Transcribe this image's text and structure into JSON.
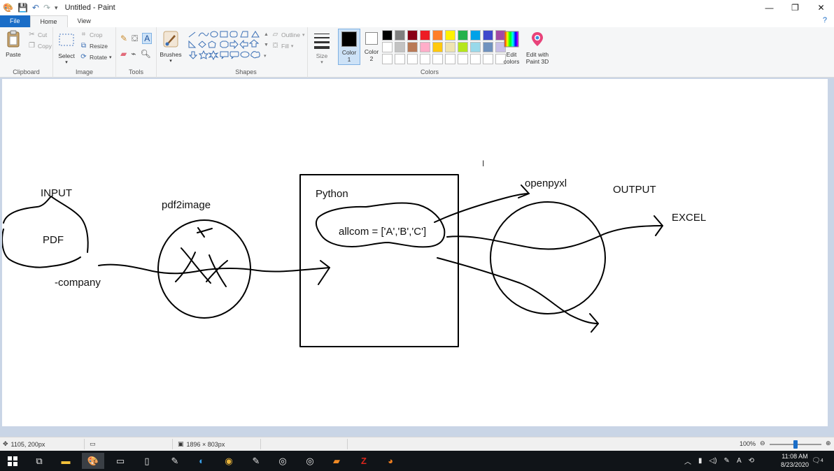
{
  "window": {
    "title": "Untitled - Paint",
    "controls": [
      "—",
      "❐",
      "✕"
    ]
  },
  "tabs": {
    "file": "File",
    "home": "Home",
    "view": "View"
  },
  "ribbon": {
    "clipboard": {
      "paste": "Paste",
      "cut": "Cut",
      "copy": "Copy",
      "label": "Clipboard"
    },
    "image": {
      "select": "Select",
      "crop": "Crop",
      "resize": "Resize",
      "rotate": "Rotate",
      "label": "Image"
    },
    "tools": {
      "label": "Tools"
    },
    "brushes": {
      "label": "Brushes"
    },
    "shapes": {
      "outline": "Outline",
      "fill": "Fill",
      "label": "Shapes"
    },
    "size": {
      "label": "Size"
    },
    "colors": {
      "color1": "Color",
      "color1_num": "1",
      "color2": "Color",
      "color2_num": "2",
      "edit": "Edit colors",
      "paint3d": "Edit with Paint 3D",
      "label": "Colors",
      "palette": [
        "#000000",
        "#7f7f7f",
        "#880015",
        "#ed1c24",
        "#ff7f27",
        "#fff200",
        "#22b14c",
        "#00a2e8",
        "#3f48cc",
        "#a349a4",
        "#ffffff",
        "#c3c3c3",
        "#b97a57",
        "#ffaec9",
        "#ffc90e",
        "#efe4b0",
        "#b5e61d",
        "#99d9ea",
        "#7092be",
        "#c8bfe7",
        "#ffffff",
        "#ffffff",
        "#ffffff",
        "#ffffff",
        "#ffffff",
        "#ffffff",
        "#ffffff",
        "#ffffff",
        "#ffffff",
        "#ffffff"
      ]
    }
  },
  "drawing": {
    "input_label": "INPUT",
    "pdf_label": "PDF",
    "company_label": "-company",
    "pdf2image_label": "pdf2image",
    "python_label": "Python",
    "code_label": "allcom = ['A','B','C']",
    "openpyxl_label": "openpyxl",
    "output_label": "OUTPUT",
    "excel_label": "EXCEL"
  },
  "status": {
    "cursor_pos": "1105, 200px",
    "canvas_size": "1896 × 803px",
    "zoom": "100%"
  },
  "taskbar": {
    "time": "11:08 AM",
    "date": "8/23/2020",
    "notifications": "4"
  }
}
